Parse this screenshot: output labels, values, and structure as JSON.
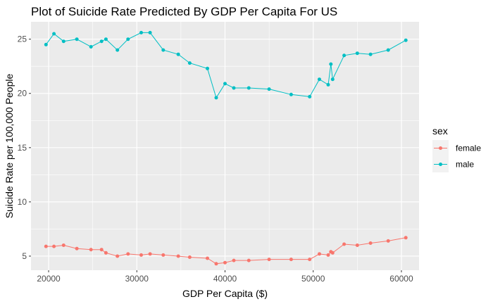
{
  "chart_data": {
    "type": "line",
    "title": "Plot of Suicide Rate Predicted By GDP Per Capita For US",
    "xlabel": "GDP Per Capita ($)",
    "ylabel": "Suicide Rate per 100,000 People",
    "xlim": [
      18000,
      62000
    ],
    "ylim": [
      3.7,
      26.6
    ],
    "x_ticks": [
      20000,
      30000,
      40000,
      50000,
      60000
    ],
    "y_ticks": [
      5,
      10,
      15,
      20,
      25
    ],
    "grid": true,
    "legend": {
      "title": "sex",
      "position": "right"
    },
    "series": [
      {
        "name": "female",
        "color": "#f8766d",
        "points": [
          [
            19700,
            5.9
          ],
          [
            20600,
            5.9
          ],
          [
            21700,
            6.0
          ],
          [
            23200,
            5.7
          ],
          [
            24800,
            5.6
          ],
          [
            26000,
            5.6
          ],
          [
            26500,
            5.3
          ],
          [
            27800,
            5.0
          ],
          [
            29000,
            5.2
          ],
          [
            30500,
            5.1
          ],
          [
            31500,
            5.2
          ],
          [
            33000,
            5.1
          ],
          [
            34700,
            5.0
          ],
          [
            36000,
            4.9
          ],
          [
            38000,
            4.8
          ],
          [
            39000,
            4.3
          ],
          [
            40000,
            4.4
          ],
          [
            41000,
            4.6
          ],
          [
            42700,
            4.6
          ],
          [
            45000,
            4.7
          ],
          [
            47500,
            4.7
          ],
          [
            49600,
            4.7
          ],
          [
            50700,
            5.2
          ],
          [
            51700,
            5.1
          ],
          [
            52000,
            5.4
          ],
          [
            52200,
            5.3
          ],
          [
            53500,
            6.1
          ],
          [
            55000,
            6.0
          ],
          [
            56500,
            6.2
          ],
          [
            58500,
            6.4
          ],
          [
            60500,
            6.7
          ]
        ]
      },
      {
        "name": "male",
        "color": "#00bfc4",
        "points": [
          [
            19700,
            24.5
          ],
          [
            20600,
            25.5
          ],
          [
            21700,
            24.8
          ],
          [
            23200,
            25.0
          ],
          [
            24800,
            24.3
          ],
          [
            26000,
            24.8
          ],
          [
            26500,
            25.0
          ],
          [
            27800,
            24.0
          ],
          [
            29000,
            25.0
          ],
          [
            30500,
            25.6
          ],
          [
            31500,
            25.6
          ],
          [
            33000,
            24.0
          ],
          [
            34700,
            23.6
          ],
          [
            36000,
            22.8
          ],
          [
            38000,
            22.3
          ],
          [
            39000,
            19.6
          ],
          [
            40000,
            20.9
          ],
          [
            41000,
            20.5
          ],
          [
            42700,
            20.5
          ],
          [
            45000,
            20.4
          ],
          [
            47500,
            19.9
          ],
          [
            49600,
            19.7
          ],
          [
            50700,
            21.3
          ],
          [
            51700,
            20.8
          ],
          [
            52000,
            22.7
          ],
          [
            52200,
            21.3
          ],
          [
            53500,
            23.5
          ],
          [
            55000,
            23.7
          ],
          [
            56500,
            23.6
          ],
          [
            58500,
            24.0
          ],
          [
            60500,
            24.9
          ]
        ]
      }
    ]
  }
}
